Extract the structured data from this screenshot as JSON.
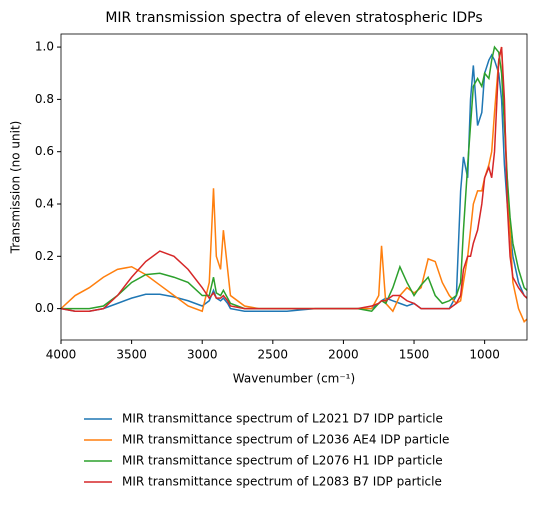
{
  "chart_data": {
    "type": "line",
    "title": "MIR transmission spectra of eleven stratospheric IDPs",
    "x_label": "Wavenumber (cm⁻¹)",
    "y_label": "Transmission (no unit)",
    "x": [
      4000,
      3900,
      3800,
      3700,
      3600,
      3500,
      3400,
      3300,
      3200,
      3100,
      3000,
      2950,
      2920,
      2900,
      2870,
      2850,
      2820,
      2800,
      2700,
      2600,
      2500,
      2400,
      2300,
      2200,
      2100,
      2000,
      1900,
      1800,
      1750,
      1730,
      1700,
      1650,
      1600,
      1550,
      1500,
      1450,
      1400,
      1350,
      1300,
      1250,
      1200,
      1170,
      1150,
      1120,
      1100,
      1080,
      1050,
      1020,
      1000,
      970,
      950,
      930,
      900,
      880,
      860,
      840,
      820,
      800,
      760,
      720,
      700
    ],
    "series": [
      {
        "name": "MIR transmittance spectrum of L2021 D7 IDP particle",
        "color": "#1f77b4",
        "values": [
          0,
          -0.01,
          -0.01,
          0,
          0.02,
          0.04,
          0.055,
          0.055,
          0.045,
          0.03,
          0.01,
          0.03,
          0.07,
          0.04,
          0.03,
          0.04,
          0.02,
          0,
          -0.01,
          -0.01,
          -0.01,
          -0.01,
          -0.005,
          0,
          0,
          0,
          0,
          0,
          0.02,
          0.03,
          0.04,
          0.03,
          0.02,
          0.01,
          0.02,
          0,
          0,
          0,
          0,
          0,
          0.05,
          0.45,
          0.58,
          0.5,
          0.8,
          0.93,
          0.7,
          0.75,
          0.9,
          0.95,
          0.97,
          0.95,
          0.9,
          0.8,
          0.55,
          0.4,
          0.3,
          0.2,
          0.1,
          0.05,
          0.04
        ]
      },
      {
        "name": "MIR transmittance spectrum of L2036 AE4 IDP particle",
        "color": "#ff7f0e",
        "values": [
          0,
          0.05,
          0.08,
          0.12,
          0.15,
          0.16,
          0.13,
          0.09,
          0.05,
          0.01,
          -0.01,
          0.1,
          0.46,
          0.2,
          0.15,
          0.3,
          0.15,
          0.05,
          0.01,
          0,
          0,
          0,
          0,
          0,
          0,
          0,
          0,
          0,
          0.05,
          0.24,
          0.02,
          -0.01,
          0.05,
          0.08,
          0.06,
          0.08,
          0.19,
          0.18,
          0.1,
          0.05,
          0.02,
          0.03,
          0.1,
          0.2,
          0.3,
          0.4,
          0.45,
          0.45,
          0.5,
          0.55,
          0.6,
          0.75,
          0.95,
          1.0,
          0.75,
          0.5,
          0.3,
          0.1,
          0,
          -0.05,
          -0.04
        ]
      },
      {
        "name": "MIR transmittance spectrum of L2076 H1 IDP particle",
        "color": "#2ca02c",
        "values": [
          0,
          0,
          0,
          0.01,
          0.05,
          0.1,
          0.13,
          0.135,
          0.12,
          0.1,
          0.05,
          0.05,
          0.12,
          0.06,
          0.05,
          0.07,
          0.04,
          0.02,
          0,
          0,
          0,
          0,
          0,
          0,
          0,
          0,
          0,
          -0.01,
          0.02,
          0.03,
          0.02,
          0.08,
          0.16,
          0.1,
          0.05,
          0.09,
          0.12,
          0.05,
          0.02,
          0.03,
          0.05,
          0.1,
          0.3,
          0.55,
          0.7,
          0.85,
          0.88,
          0.85,
          0.9,
          0.88,
          0.95,
          1.0,
          0.98,
          0.9,
          0.7,
          0.5,
          0.35,
          0.25,
          0.15,
          0.08,
          0.07
        ]
      },
      {
        "name": "MIR transmittance spectrum of L2083 B7 IDP particle",
        "color": "#d62728",
        "values": [
          0,
          -0.01,
          -0.01,
          0,
          0.05,
          0.12,
          0.18,
          0.22,
          0.2,
          0.15,
          0.08,
          0.04,
          0.06,
          0.04,
          0.04,
          0.05,
          0.03,
          0.01,
          0,
          0,
          0,
          0,
          0,
          0,
          0,
          0,
          0,
          0.01,
          0.02,
          0.03,
          0.03,
          0.05,
          0.05,
          0.03,
          0.02,
          0,
          0,
          0,
          0,
          0,
          0.02,
          0.05,
          0.15,
          0.2,
          0.2,
          0.25,
          0.3,
          0.4,
          0.5,
          0.54,
          0.5,
          0.6,
          0.95,
          1.0,
          0.8,
          0.4,
          0.2,
          0.12,
          0.08,
          0.05,
          0.04
        ]
      }
    ],
    "xlim": [
      4000,
      700
    ],
    "xticks": [
      4000,
      3500,
      3000,
      2500,
      2000,
      1500,
      1000
    ],
    "ylim": [
      -0.12,
      1.05
    ],
    "yticks": [
      {
        "value": 0,
        "label": "0.0"
      },
      0.2,
      0.4,
      0.6,
      0.8,
      {
        "value": 1,
        "label": "1.0"
      }
    ],
    "grid": false,
    "legend": "below"
  }
}
